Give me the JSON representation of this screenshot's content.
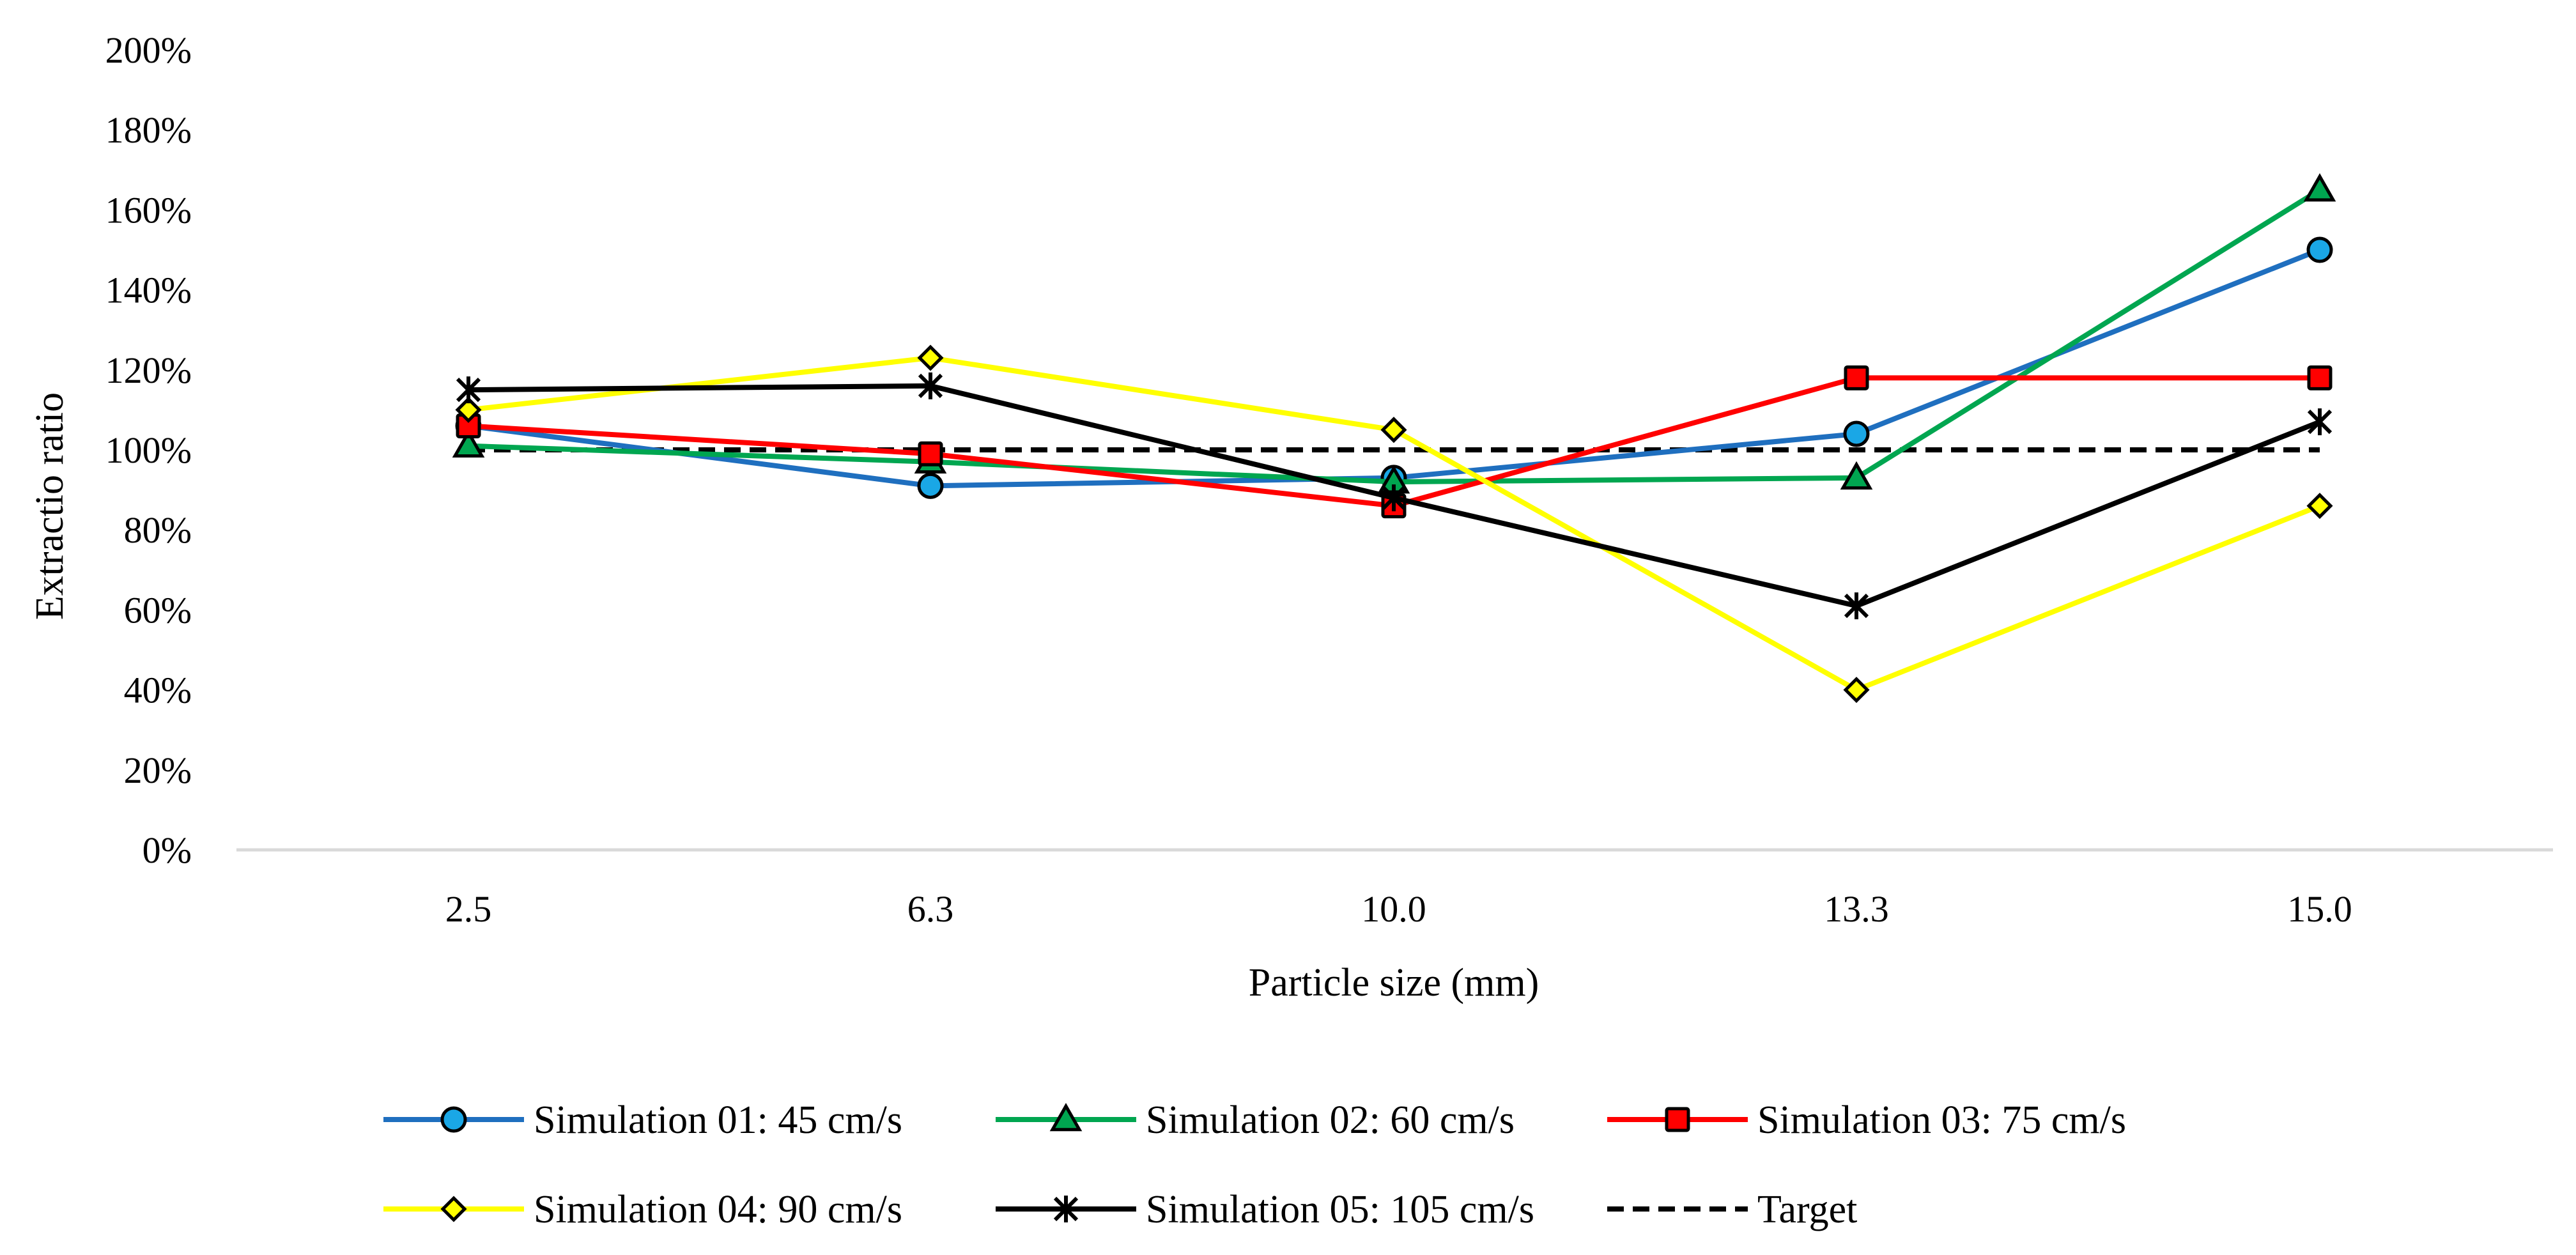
{
  "chart_data": {
    "type": "line",
    "title": "",
    "xlabel": "Particle size (mm)",
    "ylabel": "Extractio ratio",
    "categories": [
      "2.5",
      "6.3",
      "10.0",
      "13.3",
      "15.0"
    ],
    "ylim": [
      0,
      200
    ],
    "yticks": [
      0,
      20,
      40,
      60,
      80,
      100,
      120,
      140,
      160,
      180,
      200
    ],
    "ytick_labels": [
      "0%",
      "20%",
      "40%",
      "60%",
      "80%",
      "100%",
      "120%",
      "140%",
      "160%",
      "180%",
      "200%"
    ],
    "grid": false,
    "legend_position": "bottom",
    "series": [
      {
        "name": "Simulation 01: 45 cm/s",
        "color": "#1f6fbf",
        "marker": "circle",
        "marker_fill": "#1aa7e6",
        "dashed": false,
        "values": [
          106,
          91,
          93,
          104,
          150
        ]
      },
      {
        "name": "Simulation 02: 60 cm/s",
        "color": "#00a650",
        "marker": "triangle",
        "marker_fill": "#00a650",
        "dashed": false,
        "values": [
          101,
          97,
          92,
          93,
          165
        ]
      },
      {
        "name": "Simulation 03: 75 cm/s",
        "color": "#ff0000",
        "marker": "square",
        "marker_fill": "#ff0000",
        "dashed": false,
        "values": [
          106,
          99,
          86,
          118,
          118
        ]
      },
      {
        "name": "Simulation 04: 90 cm/s",
        "color": "#ffff00",
        "marker": "diamond",
        "marker_fill": "#ffff00",
        "dashed": false,
        "values": [
          110,
          123,
          105,
          40,
          86
        ]
      },
      {
        "name": "Simulation 05: 105 cm/s",
        "color": "#000000",
        "marker": "star",
        "marker_fill": "#000000",
        "dashed": false,
        "values": [
          115,
          116,
          88,
          61,
          107
        ]
      },
      {
        "name": "Target",
        "color": "#000000",
        "marker": "none",
        "marker_fill": "",
        "dashed": true,
        "values": [
          100,
          100,
          100,
          100,
          100
        ]
      }
    ]
  }
}
